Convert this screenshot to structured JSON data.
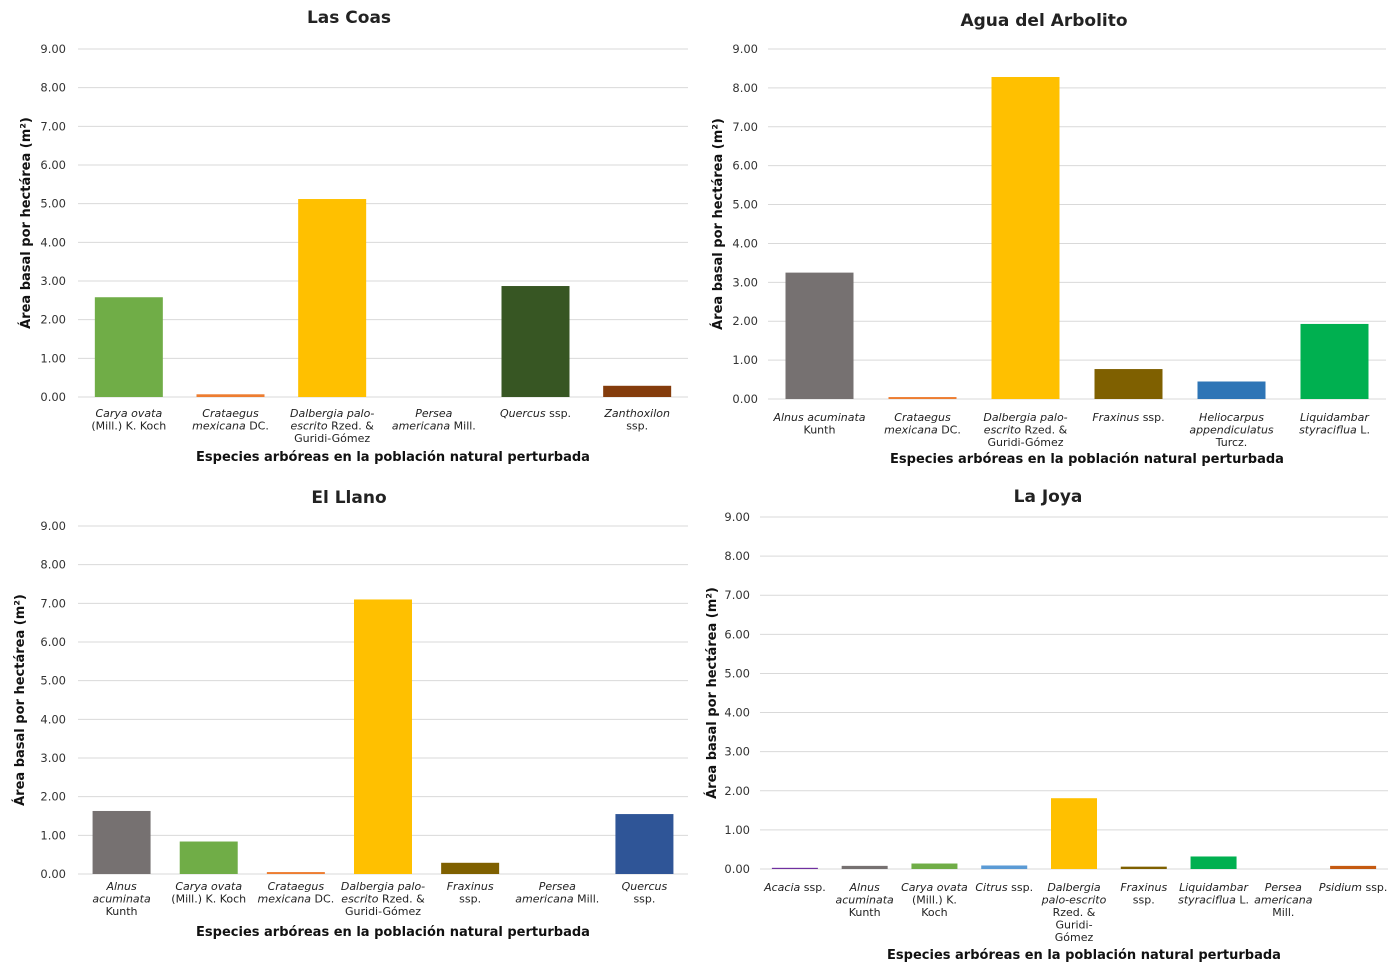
{
  "chart_data": [
    {
      "type": "bar",
      "title": "Las Coas",
      "xlabel": "Especies arbóreas en la población natural perturbada",
      "ylabel": "Área basal por hectárea (m²)",
      "ylim": [
        0,
        9
      ],
      "yticks": [
        "0.00",
        "1.00",
        "2.00",
        "3.00",
        "4.00",
        "5.00",
        "6.00",
        "7.00",
        "8.00",
        "9.00"
      ],
      "grid": true,
      "categories": [
        {
          "lines": [
            {
              "it": "Carya ovata"
            },
            {
              "rm": "(Mill.) K. Koch"
            }
          ]
        },
        {
          "lines": [
            {
              "it": "Crataegus"
            },
            {
              "it": "mexicana",
              "rm": " DC."
            }
          ]
        },
        {
          "lines": [
            {
              "it": "Dalbergia palo-"
            },
            {
              "it": "escrito",
              "rm": " Rzed. &"
            },
            {
              "rm": "Guridi-Gómez"
            }
          ]
        },
        {
          "lines": [
            {
              "it": "Persea"
            },
            {
              "it": "americana",
              "rm": " Mill."
            }
          ]
        },
        {
          "lines": [
            {
              "it": "Quercus",
              "rm": " ssp."
            }
          ]
        },
        {
          "lines": [
            {
              "it": "Zanthoxilon"
            },
            {
              "rm": "ssp."
            }
          ]
        }
      ],
      "values": [
        2.58,
        0.07,
        5.12,
        0.0,
        2.87,
        0.29
      ],
      "colors": [
        "#70ad47",
        "#ed7d31",
        "#ffc000",
        "#a5a5a5",
        "#375623",
        "#843c0c"
      ]
    },
    {
      "type": "bar",
      "title": "Agua del Arbolito",
      "xlabel": "Especies arbóreas en la población natural perturbada",
      "ylabel": "Área basal por hectárea (m²)",
      "ylim": [
        0,
        9
      ],
      "yticks": [
        "0.00",
        "1.00",
        "2.00",
        "3.00",
        "4.00",
        "5.00",
        "6.00",
        "7.00",
        "8.00",
        "9.00"
      ],
      "grid": true,
      "categories": [
        {
          "lines": [
            {
              "it": "Alnus acuminata"
            },
            {
              "rm": "Kunth"
            }
          ]
        },
        {
          "lines": [
            {
              "it": "Crataegus"
            },
            {
              "it": "mexicana",
              "rm": " DC."
            }
          ]
        },
        {
          "lines": [
            {
              "it": "Dalbergia palo-"
            },
            {
              "it": "escrito",
              "rm": " Rzed. &"
            },
            {
              "rm": "Guridi-Gómez"
            }
          ]
        },
        {
          "lines": [
            {
              "it": "Fraxinus",
              "rm": " ssp."
            }
          ]
        },
        {
          "lines": [
            {
              "it": "Heliocarpus"
            },
            {
              "it": "appendiculatus"
            },
            {
              "rm": "Turcz."
            }
          ]
        },
        {
          "lines": [
            {
              "it": "Liquidambar"
            },
            {
              "it": "styraciflua",
              "rm": " L."
            }
          ]
        }
      ],
      "values": [
        3.25,
        0.05,
        8.28,
        0.77,
        0.45,
        1.93
      ],
      "colors": [
        "#767171",
        "#ed7d31",
        "#ffc000",
        "#7f6000",
        "#2e75b6",
        "#00b050"
      ]
    },
    {
      "type": "bar",
      "title": "El Llano",
      "xlabel": "Especies arbóreas en la población natural perturbada",
      "ylabel": "Área basal por hectárea (m²)",
      "ylim": [
        0,
        9
      ],
      "yticks": [
        "0.00",
        "1.00",
        "2.00",
        "3.00",
        "4.00",
        "5.00",
        "6.00",
        "7.00",
        "8.00",
        "9.00"
      ],
      "grid": true,
      "categories": [
        {
          "lines": [
            {
              "it": "Alnus"
            },
            {
              "it": "acuminata"
            },
            {
              "rm": "Kunth"
            }
          ]
        },
        {
          "lines": [
            {
              "it": "Carya ovata"
            },
            {
              "rm": "(Mill.) K. Koch"
            }
          ]
        },
        {
          "lines": [
            {
              "it": "Crataegus"
            },
            {
              "it": "mexicana",
              "rm": " DC."
            }
          ]
        },
        {
          "lines": [
            {
              "it": "Dalbergia palo-"
            },
            {
              "it": "escrito",
              "rm": " Rzed. &"
            },
            {
              "rm": "Guridi-Gómez"
            }
          ]
        },
        {
          "lines": [
            {
              "it": "Fraxinus"
            },
            {
              "rm": "ssp."
            }
          ]
        },
        {
          "lines": [
            {
              "it": "Persea"
            },
            {
              "it": "americana",
              "rm": " Mill."
            }
          ]
        },
        {
          "lines": [
            {
              "it": "Quercus"
            },
            {
              "rm": "ssp."
            }
          ]
        }
      ],
      "values": [
        1.63,
        0.84,
        0.05,
        7.1,
        0.29,
        0.0,
        1.55
      ],
      "colors": [
        "#767171",
        "#70ad47",
        "#ed7d31",
        "#ffc000",
        "#7f6000",
        "#a5a5a5",
        "#2f5597"
      ]
    },
    {
      "type": "bar",
      "title": "La Joya",
      "xlabel": "Especies arbóreas en la población natural perturbada",
      "ylabel": "Área basal por hectárea (m²)",
      "ylim": [
        0,
        9
      ],
      "yticks": [
        "0.00",
        "1.00",
        "2.00",
        "3.00",
        "4.00",
        "5.00",
        "6.00",
        "7.00",
        "8.00",
        "9.00"
      ],
      "grid": true,
      "categories": [
        {
          "lines": [
            {
              "it": "Acacia",
              "rm": " ssp."
            }
          ]
        },
        {
          "lines": [
            {
              "it": "Alnus"
            },
            {
              "it": "acuminata"
            },
            {
              "rm": "Kunth"
            }
          ]
        },
        {
          "lines": [
            {
              "it": "Carya ovata"
            },
            {
              "rm": "(Mill.) K."
            },
            {
              "rm": "Koch"
            }
          ]
        },
        {
          "lines": [
            {
              "it": "Citrus",
              "rm": " ssp."
            }
          ]
        },
        {
          "lines": [
            {
              "it": "Dalbergia"
            },
            {
              "it": "palo-escrito"
            },
            {
              "rm": "Rzed. &"
            },
            {
              "rm": "Guridi-"
            },
            {
              "rm": "Gómez"
            }
          ]
        },
        {
          "lines": [
            {
              "it": "Fraxinus"
            },
            {
              "rm": "ssp."
            }
          ]
        },
        {
          "lines": [
            {
              "it": "Liquidambar"
            },
            {
              "it": "styraciflua",
              "rm": " L."
            }
          ]
        },
        {
          "lines": [
            {
              "it": "Persea"
            },
            {
              "it": "americana"
            },
            {
              "rm": "Mill."
            }
          ]
        },
        {
          "lines": [
            {
              "it": "Psidium",
              "rm": " ssp."
            }
          ]
        }
      ],
      "values": [
        0.03,
        0.08,
        0.14,
        0.09,
        1.81,
        0.06,
        0.32,
        0.0,
        0.08
      ],
      "colors": [
        "#7030a0",
        "#767171",
        "#70ad47",
        "#5b9bd5",
        "#ffc000",
        "#7f6000",
        "#00b050",
        "#a5a5a5",
        "#c55a11"
      ]
    }
  ]
}
